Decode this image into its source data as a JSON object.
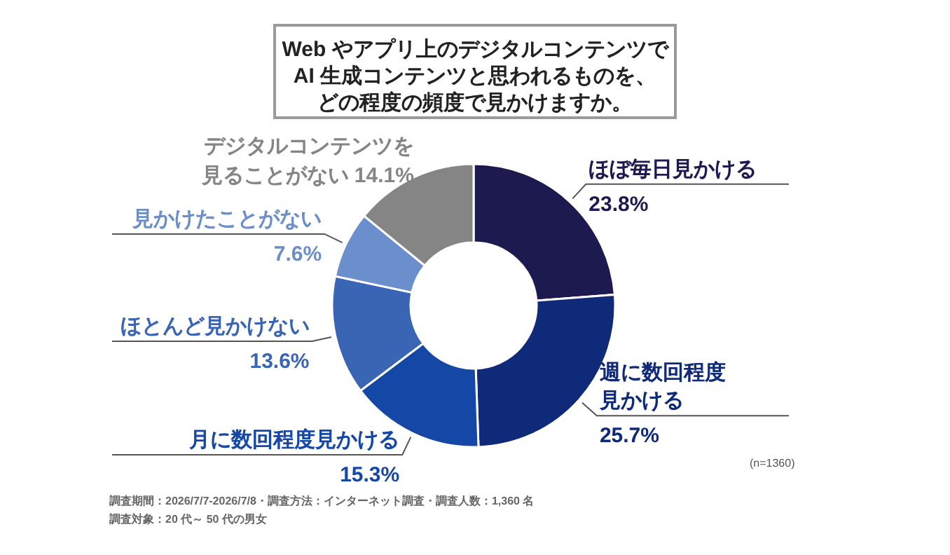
{
  "chart_data": {
    "type": "donut",
    "title": "Web やアプリ上のデジタルコンテンツでAI 生成コンテンツと思われるものを、どの程度の頻度で見かけますか。",
    "categories": [
      "ほぼ毎日見かける",
      "週に数回程度見かける",
      "月に数回程度見かける",
      "ほとんど見かけない",
      "見かけたことがない",
      "デジタルコンテンツを見ることがない"
    ],
    "values": [
      23.8,
      25.7,
      15.3,
      13.6,
      7.6,
      14.1
    ],
    "value_labels": [
      "23.8%",
      "25.7%",
      "15.3%",
      "13.6%",
      "7.6%",
      "14.1%"
    ],
    "colors": [
      "#1c1a4e",
      "#0f2a78",
      "#1447a6",
      "#3a64b4",
      "#6a8fcc",
      "#858585"
    ],
    "annotations": [
      "(n=1360)",
      "調査期間：2026/7/7-2026/7/8・調査方法：インターネット調査・調査人数：1,360 名",
      "調査対象：20 代～ 50 代の男女"
    ]
  }
}
